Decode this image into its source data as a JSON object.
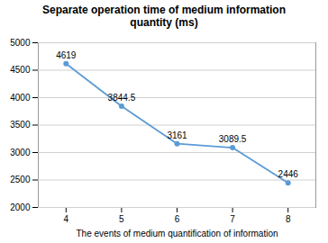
{
  "chart_data": {
    "type": "line",
    "title": "Separate operation time of medium information\nquantity (ms)",
    "xlabel": "The events of medium quantification of information",
    "x": [
      4,
      5,
      6,
      7,
      8
    ],
    "values": [
      4619,
      3844.5,
      3161,
      3089.5,
      2446
    ],
    "color": "#5B9BD5",
    "marker": "circle",
    "xlim": [
      3.5,
      8.5
    ],
    "xticks": [
      4,
      5,
      6,
      7,
      8
    ],
    "ylim": [
      2000,
      5000
    ],
    "yticks": [
      2000,
      2500,
      3000,
      3500,
      4000,
      4500,
      5000
    ],
    "grid": "y",
    "data_labels": true
  }
}
